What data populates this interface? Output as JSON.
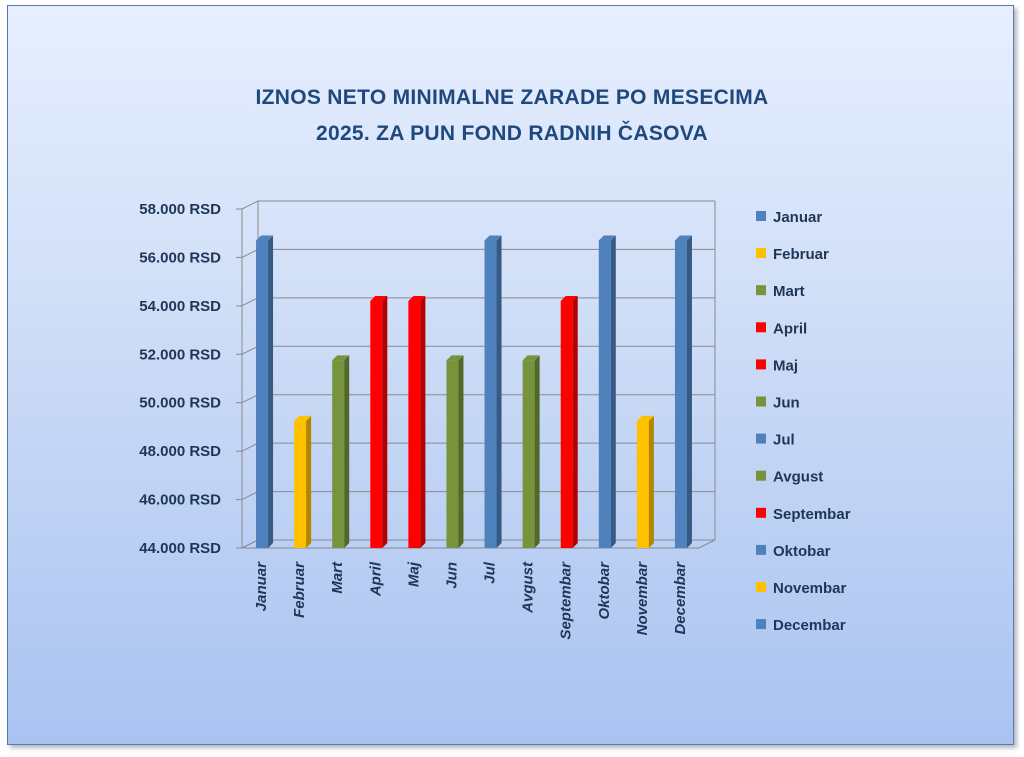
{
  "chart_data": {
    "type": "bar",
    "title_line1": "IZNOS NETO MINIMALNE ZARADE PO MESECIMA",
    "title_line2": "2025. ZA PUN FOND RADNIH ČASOVA",
    "title": "IZNOS NETO MINIMALNE ZARADE PO MESECIMA 2025. ZA PUN FOND RADNIH ČASOVA",
    "xlabel": "",
    "ylabel": "",
    "categories": [
      "Januar",
      "Februar",
      "Mart",
      "April",
      "Maj",
      "Jun",
      "Jul",
      "Avgust",
      "Septembar",
      "Oktobar",
      "Novembar",
      "Decembar"
    ],
    "values": [
      56700,
      49250,
      51750,
      54200,
      54200,
      51750,
      56700,
      51750,
      54200,
      56700,
      49250,
      56700
    ],
    "colors": [
      "#4f81bd",
      "#ffc000",
      "#77933c",
      "#ff0000",
      "#ff0000",
      "#77933c",
      "#4f81bd",
      "#77933c",
      "#ff0000",
      "#4f81bd",
      "#ffc000",
      "#4f81bd"
    ],
    "ylim": [
      44000,
      58000
    ],
    "y_ticks": [
      44000,
      46000,
      48000,
      50000,
      52000,
      54000,
      56000,
      58000
    ],
    "y_tick_labels": [
      "44.000 RSD",
      "46.000 RSD",
      "48.000 RSD",
      "50.000 RSD",
      "52.000 RSD",
      "54.000 RSD",
      "56.000 RSD",
      "58.000 RSD"
    ],
    "grid": true,
    "legend_position": "right",
    "style": "3d-column"
  }
}
